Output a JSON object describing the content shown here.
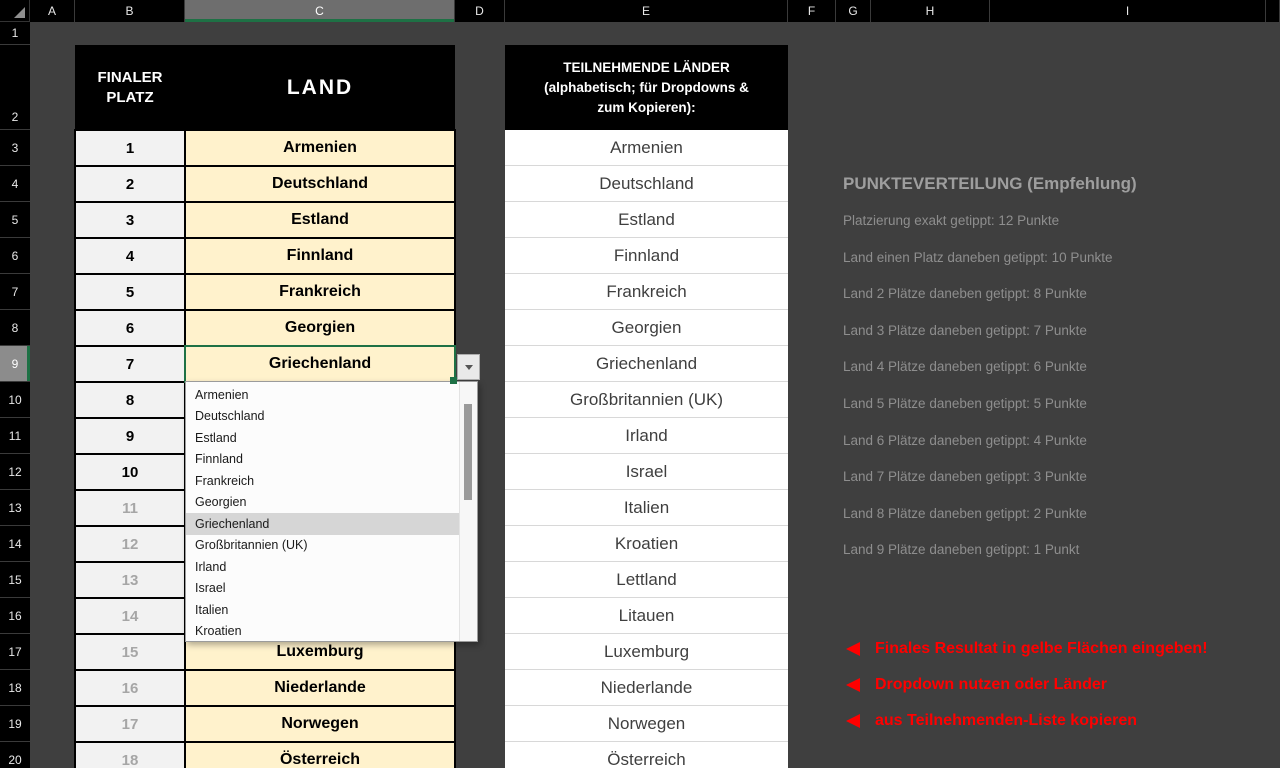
{
  "colors": {
    "selection_green": "#1E7145",
    "cell_yellow": "#FFF2CC",
    "cell_gray": "#F2F2F2",
    "alert_red": "#FF0000",
    "header_bg": "#000000",
    "sheet_bg": "#3F3F3F",
    "muted_number": "#A6A6A6",
    "panel_text": "#8E8E8E"
  },
  "sheet": {
    "selected_cell": "C9",
    "column_headers": [
      {
        "label": "A"
      },
      {
        "label": "B"
      },
      {
        "label": "C",
        "cls": "sel"
      },
      {
        "label": "D"
      },
      {
        "label": "E"
      },
      {
        "label": "F"
      },
      {
        "label": "G"
      },
      {
        "label": "H"
      },
      {
        "label": "I"
      },
      {
        "label": ""
      }
    ],
    "row_headers": [
      {
        "label": "1"
      },
      {
        "label": "2"
      },
      {
        "label": "3"
      },
      {
        "label": "4"
      },
      {
        "label": "5"
      },
      {
        "label": "6"
      },
      {
        "label": "7"
      },
      {
        "label": "8"
      },
      {
        "label": "9",
        "cls": "sel"
      },
      {
        "label": "10"
      },
      {
        "label": "11"
      },
      {
        "label": "12"
      },
      {
        "label": "13"
      },
      {
        "label": "14"
      },
      {
        "label": "15"
      },
      {
        "label": "16"
      },
      {
        "label": "17"
      },
      {
        "label": "18"
      },
      {
        "label": "19"
      },
      {
        "label": "20"
      }
    ]
  },
  "final_table": {
    "header": {
      "place": "FINALER PLATZ",
      "land": "LAND"
    },
    "rows": [
      {
        "place": "1",
        "country": "Armenien"
      },
      {
        "place": "2",
        "country": "Deutschland"
      },
      {
        "place": "3",
        "country": "Estland"
      },
      {
        "place": "4",
        "country": "Finnland"
      },
      {
        "place": "5",
        "country": "Frankreich"
      },
      {
        "place": "6",
        "country": "Georgien"
      },
      {
        "place": "7",
        "country": "Griechenland",
        "cls": "sel"
      },
      {
        "place": "8",
        "country": ""
      },
      {
        "place": "9",
        "country": ""
      },
      {
        "place": "10",
        "country": ""
      },
      {
        "place": "11",
        "country": "",
        "cls": "muted"
      },
      {
        "place": "12",
        "country": "",
        "cls": "muted"
      },
      {
        "place": "13",
        "country": "",
        "cls": "muted"
      },
      {
        "place": "14",
        "country": "",
        "cls": "muted"
      },
      {
        "place": "15",
        "country": "Luxemburg",
        "cls": "muted"
      },
      {
        "place": "16",
        "country": "Niederlande",
        "cls": "muted"
      },
      {
        "place": "17",
        "country": "Norwegen",
        "cls": "muted"
      },
      {
        "place": "18",
        "country": "Österreich",
        "cls": "muted"
      }
    ]
  },
  "dropdown": {
    "items": [
      {
        "label": "Armenien"
      },
      {
        "label": "Deutschland"
      },
      {
        "label": "Estland"
      },
      {
        "label": "Finnland"
      },
      {
        "label": "Frankreich"
      },
      {
        "label": "Georgien"
      },
      {
        "label": "Griechenland",
        "cls": "sel"
      },
      {
        "label": "Großbritannien (UK)"
      },
      {
        "label": "Irland"
      },
      {
        "label": "Israel"
      },
      {
        "label": "Italien"
      },
      {
        "label": "Kroatien"
      }
    ]
  },
  "participants": {
    "header_lines": [
      "TEILNEHMENDE LÄNDER",
      "(alphabetisch; für Dropdowns &",
      "zum Kopieren):"
    ],
    "items": [
      "Armenien",
      "Deutschland",
      "Estland",
      "Finnland",
      "Frankreich",
      "Georgien",
      "Griechenland",
      "Großbritannien (UK)",
      "Irland",
      "Israel",
      "Italien",
      "Kroatien",
      "Lettland",
      "Litauen",
      "Luxemburg",
      "Niederlande",
      "Norwegen",
      "Österreich"
    ]
  },
  "scoring": {
    "title": "PUNKTEVERTEILUNG (Empfehlung)",
    "items": [
      "Platzierung exakt getippt: 12 Punkte",
      "Land einen Platz daneben getippt: 10 Punkte",
      "Land 2 Plätze daneben getippt: 8 Punkte",
      "Land 3 Plätze daneben getippt: 7 Punkte",
      "Land 4 Plätze daneben getippt: 6 Punkte",
      "Land 5 Plätze daneben getippt: 5 Punkte",
      "Land 6 Plätze daneben getippt: 4 Punkte",
      "Land 7 Plätze daneben getippt: 3 Punkte",
      "Land 8 Plätze daneben getippt: 2 Punkte",
      "Land 9 Plätze daneben getippt: 1 Punkt"
    ]
  },
  "notes": {
    "items": [
      "Finales Resultat in gelbe Flächen eingeben!",
      "Dropdown nutzen oder Länder",
      "aus Teilnehmenden-Liste kopieren"
    ]
  }
}
